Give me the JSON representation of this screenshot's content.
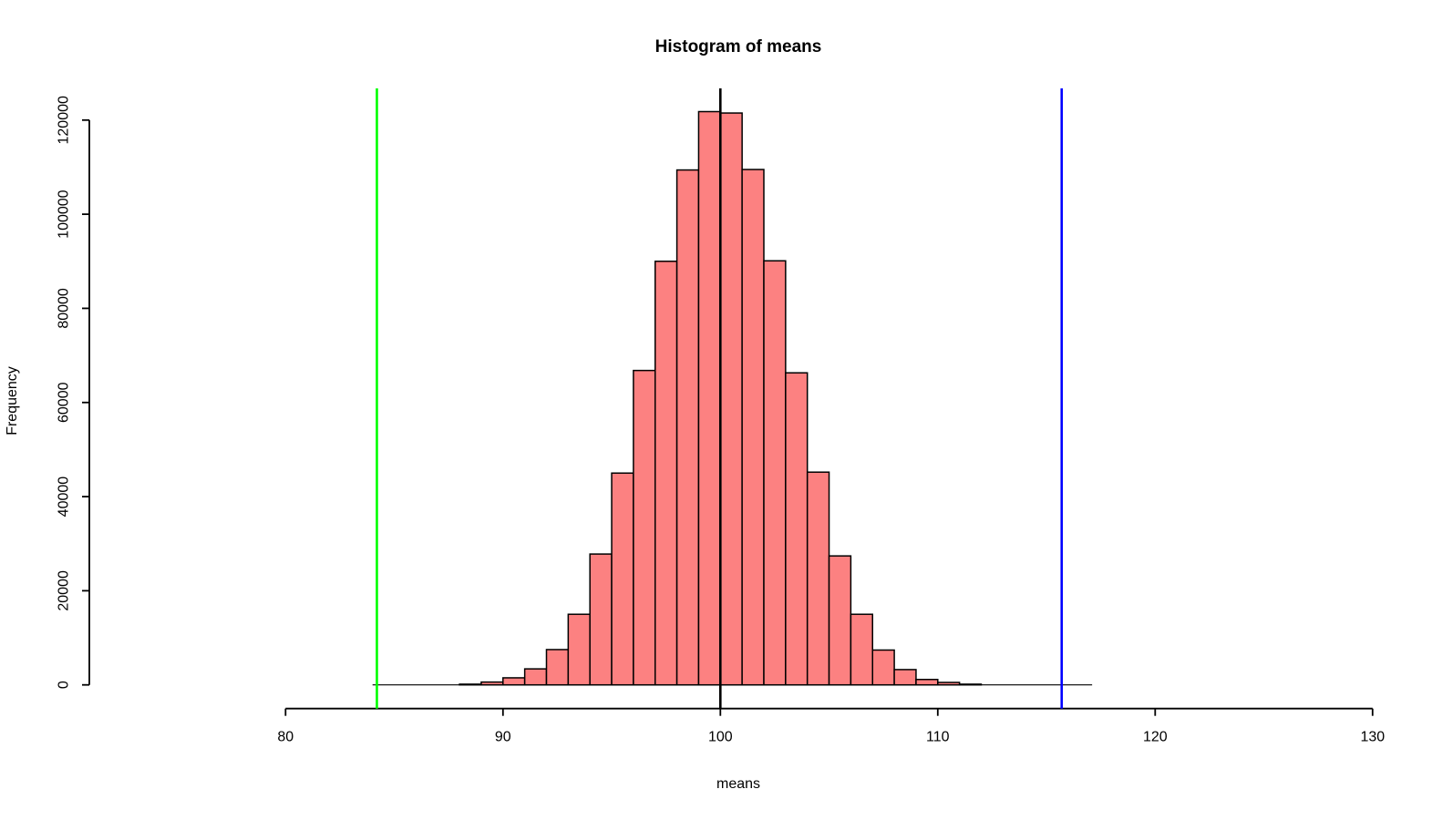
{
  "title": "Histogram of means",
  "xlabel": "means",
  "ylabel": "Frequency",
  "colors": {
    "bar_fill": "#FC8181",
    "bar_stroke": "#000000",
    "axis": "#000000",
    "mean_line": "#000000",
    "lower_line": "#00FF00",
    "upper_line": "#0000FF"
  },
  "chart_data": {
    "type": "bar",
    "subtype": "histogram",
    "title": "Histogram of means",
    "xlabel": "means",
    "ylabel": "Frequency",
    "bin_width": 1,
    "bins": [
      {
        "x0": 88,
        "x1": 89,
        "freq": 150
      },
      {
        "x0": 89,
        "x1": 90,
        "freq": 600
      },
      {
        "x0": 90,
        "x1": 91,
        "freq": 1500
      },
      {
        "x0": 91,
        "x1": 92,
        "freq": 3400
      },
      {
        "x0": 92,
        "x1": 93,
        "freq": 7500
      },
      {
        "x0": 93,
        "x1": 94,
        "freq": 15000
      },
      {
        "x0": 94,
        "x1": 95,
        "freq": 27800
      },
      {
        "x0": 95,
        "x1": 96,
        "freq": 45000
      },
      {
        "x0": 96,
        "x1": 97,
        "freq": 66800
      },
      {
        "x0": 97,
        "x1": 98,
        "freq": 90000
      },
      {
        "x0": 98,
        "x1": 99,
        "freq": 109400
      },
      {
        "x0": 99,
        "x1": 100,
        "freq": 121800
      },
      {
        "x0": 100,
        "x1": 101,
        "freq": 121500
      },
      {
        "x0": 101,
        "x1": 102,
        "freq": 109500
      },
      {
        "x0": 102,
        "x1": 103,
        "freq": 90100
      },
      {
        "x0": 103,
        "x1": 104,
        "freq": 66300
      },
      {
        "x0": 104,
        "x1": 105,
        "freq": 45200
      },
      {
        "x0": 105,
        "x1": 106,
        "freq": 27400
      },
      {
        "x0": 106,
        "x1": 107,
        "freq": 15000
      },
      {
        "x0": 107,
        "x1": 108,
        "freq": 7400
      },
      {
        "x0": 108,
        "x1": 109,
        "freq": 3250
      },
      {
        "x0": 109,
        "x1": 110,
        "freq": 1150
      },
      {
        "x0": 110,
        "x1": 111,
        "freq": 520
      },
      {
        "x0": 111,
        "x1": 112,
        "freq": 150
      }
    ],
    "x_ticks": [
      80,
      90,
      100,
      110,
      120,
      130
    ],
    "y_ticks": [
      0,
      20000,
      40000,
      60000,
      80000,
      100000,
      120000
    ],
    "xlim": [
      80,
      130
    ],
    "ylim": [
      0,
      120000
    ],
    "grid": false,
    "legend": null,
    "baseline_span": [
      84.0,
      117.1
    ],
    "vlines": [
      {
        "x": 84.2,
        "color": "#00FF00",
        "name": "lower-bound-line"
      },
      {
        "x": 100.0,
        "color": "#000000",
        "name": "mean-line"
      },
      {
        "x": 115.7,
        "color": "#0000FF",
        "name": "upper-bound-line"
      }
    ]
  }
}
